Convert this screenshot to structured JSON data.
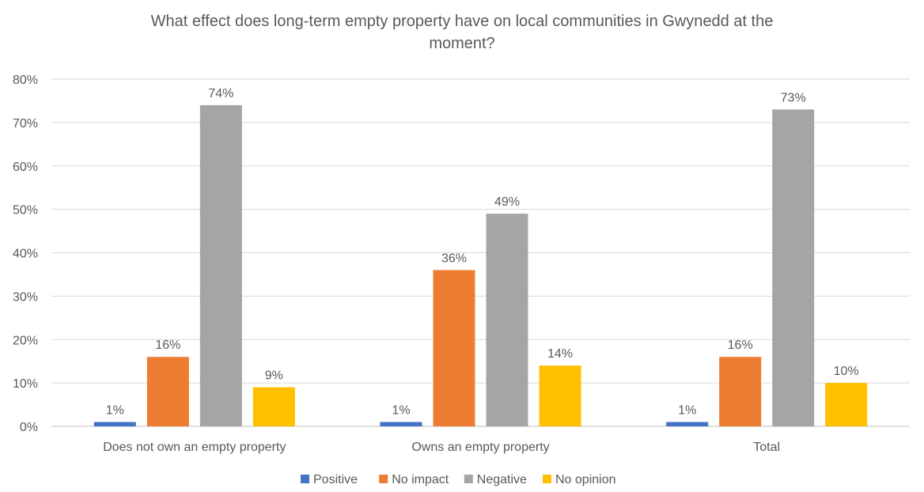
{
  "chart_data": {
    "type": "bar",
    "title_lines": [
      "What effect does long-term empty property have on local communities in Gwynedd at the",
      "moment?"
    ],
    "categories": [
      "Does not own an empty property",
      "Owns an empty property",
      "Total"
    ],
    "series": [
      {
        "name": "Positive",
        "color": "#4472C4",
        "values": [
          1,
          1,
          1
        ],
        "labels": [
          "1%",
          "1%",
          "1%"
        ]
      },
      {
        "name": "No impact",
        "color": "#ED7D31",
        "values": [
          16,
          36,
          16
        ],
        "labels": [
          "16%",
          "36%",
          "16%"
        ]
      },
      {
        "name": "Negative",
        "color": "#A5A5A5",
        "values": [
          74,
          49,
          73
        ],
        "labels": [
          "74%",
          "49%",
          "73%"
        ]
      },
      {
        "name": "No opinion",
        "color": "#FFC000",
        "values": [
          9,
          14,
          10
        ],
        "labels": [
          "9%",
          "14%",
          "10%"
        ]
      }
    ],
    "y_ticks": [
      "0%",
      "10%",
      "20%",
      "30%",
      "40%",
      "50%",
      "60%",
      "70%",
      "80%"
    ],
    "ylim": [
      0,
      80
    ],
    "grid": true,
    "legend_position": "bottom"
  }
}
